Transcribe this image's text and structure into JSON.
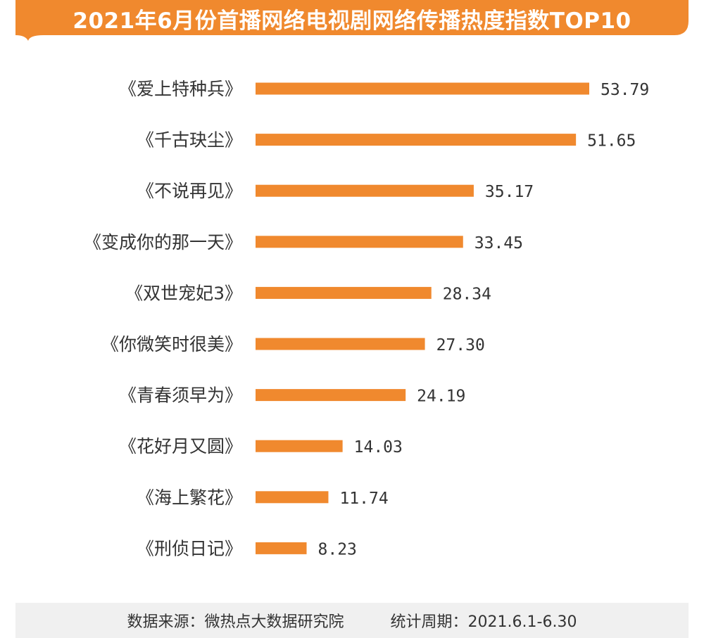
{
  "title": "2021年6月份首播网络电视剧网络传播热度指数TOP10",
  "colors": {
    "accent": "#f0892e",
    "label": "#333333",
    "footer_bg": "#f0f0f0"
  },
  "chart_data": {
    "type": "bar",
    "orientation": "horizontal",
    "title": "2021年6月份首播网络电视剧网络传播热度指数TOP10",
    "categories": [
      "《爱上特种兵》",
      "《千古玦尘》",
      "《不说再见》",
      "《变成你的那一天》",
      "《双世宠妃3》",
      "《你微笑时很美》",
      "《青春须早为》",
      "《花好月又圆》",
      "《海上繁花》",
      "《刑侦日记》"
    ],
    "values": [
      53.79,
      51.65,
      35.17,
      33.45,
      28.34,
      27.3,
      24.19,
      14.03,
      11.74,
      8.23
    ],
    "value_labels": [
      "53.79",
      "51.65",
      "35.17",
      "33.45",
      "28.34",
      "27.30",
      "24.19",
      "14.03",
      "11.74",
      "8.23"
    ],
    "xlim": [
      0,
      53.79
    ],
    "grid": false,
    "legend": "none"
  },
  "footer": {
    "source": "数据来源：微热点大数据研究院",
    "period": "统计周期：2021.6.1-6.30"
  }
}
